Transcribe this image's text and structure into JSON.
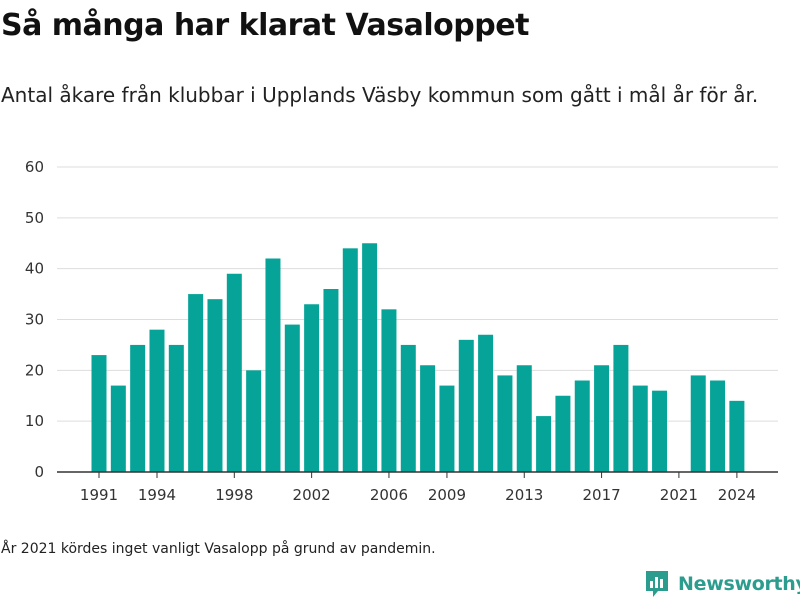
{
  "title": "Så många har klarat Vasaloppet",
  "subtitle": "Antal åkare från klubbar i Upplands Väsby kommun som gått i mål år för år.",
  "note": "År 2021 kördes inget vanligt Vasalopp på grund av pandemin.",
  "brand": {
    "name": "Newsworthy",
    "icon": "newsworthy-logo-icon",
    "color": "#2c9c8e"
  },
  "chart_data": {
    "type": "bar",
    "color": "#05a398",
    "x": [
      1991,
      1992,
      1993,
      1994,
      1995,
      1996,
      1997,
      1998,
      1999,
      2000,
      2001,
      2002,
      2003,
      2004,
      2005,
      2006,
      2007,
      2008,
      2009,
      2010,
      2011,
      2012,
      2013,
      2014,
      2015,
      2016,
      2017,
      2018,
      2019,
      2020,
      2021,
      2022,
      2023,
      2024
    ],
    "values": [
      23,
      17,
      25,
      28,
      25,
      35,
      34,
      39,
      20,
      42,
      29,
      33,
      36,
      44,
      45,
      32,
      25,
      21,
      17,
      26,
      27,
      19,
      21,
      11,
      15,
      18,
      21,
      25,
      17,
      16,
      null,
      19,
      18,
      14
    ],
    "xticks": [
      "1991",
      "1994",
      "1998",
      "2002",
      "2006",
      "2009",
      "2013",
      "2017",
      "2021",
      "2024"
    ],
    "yticks": [
      "0",
      "10",
      "20",
      "30",
      "40",
      "50",
      "60"
    ],
    "ylim": [
      0,
      60
    ],
    "grid": true,
    "xlabel": "",
    "ylabel": ""
  }
}
